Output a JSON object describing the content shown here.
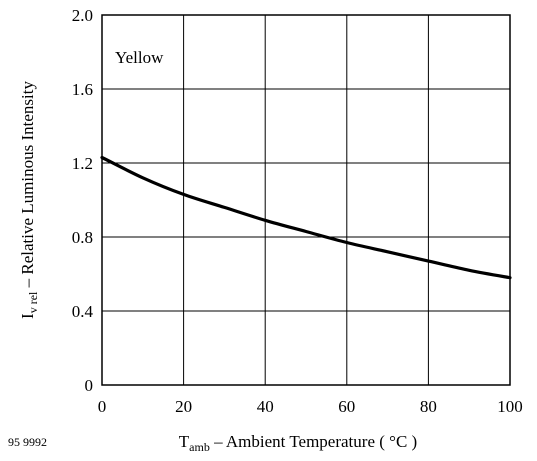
{
  "chart_data": {
    "type": "line",
    "title": "",
    "annotation": "Yellow",
    "xlabel": {
      "symbol": "T",
      "subscript": "amb",
      "text": " – Ambient Temperature ( °C )"
    },
    "ylabel": {
      "symbol": "I",
      "subscript": "v rel",
      "text": "  – Relative Luminous Intensity"
    },
    "xlim": [
      0,
      100
    ],
    "ylim": [
      0,
      2.0
    ],
    "xticks": [
      0,
      20,
      40,
      60,
      80,
      100
    ],
    "xtick_labels": [
      "0",
      "20",
      "40",
      "60",
      "80",
      "100"
    ],
    "yticks": [
      0,
      0.4,
      0.8,
      1.2,
      1.6,
      2.0
    ],
    "ytick_labels": [
      "0",
      "0.4",
      "0.8",
      "1.2",
      "1.6",
      "2.0"
    ],
    "grid": true,
    "series": [
      {
        "x": [
          0,
          10,
          20,
          30,
          40,
          50,
          60,
          70,
          80,
          90,
          100
        ],
        "y": [
          1.23,
          1.12,
          1.03,
          0.96,
          0.89,
          0.83,
          0.77,
          0.72,
          0.67,
          0.62,
          0.58
        ]
      }
    ],
    "figure_code": "95 9992"
  }
}
